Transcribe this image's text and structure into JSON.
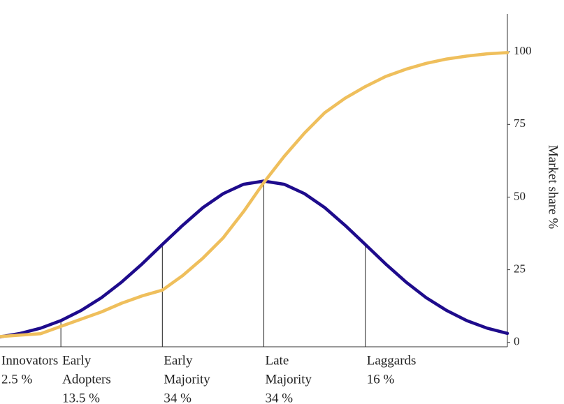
{
  "chart_data": {
    "type": "line",
    "y_axis_label": "Market share %",
    "xlim": [
      -2.6,
      2.4
    ],
    "ylim": [
      -1.5,
      113
    ],
    "yticks": [
      0,
      25,
      50,
      75,
      100
    ],
    "x": [
      -2.6,
      -2.4,
      -2.2,
      -2.0,
      -1.8,
      -1.6,
      -1.4,
      -1.2,
      -1.0,
      -0.8,
      -0.6,
      -0.4,
      -0.2,
      0,
      0.2,
      0.4,
      0.6,
      0.8,
      1.0,
      1.2,
      1.4,
      1.6,
      1.8,
      2.0,
      2.2,
      2.4
    ],
    "series": [
      {
        "color": "#1e0b8c",
        "values": [
          1.9,
          3.1,
          4.9,
          7.5,
          11.0,
          15.4,
          20.8,
          27.0,
          33.7,
          40.3,
          46.4,
          51.2,
          54.4,
          55.5,
          54.4,
          51.2,
          46.4,
          40.3,
          33.7,
          27.0,
          20.8,
          15.4,
          11.0,
          7.5,
          4.9,
          3.1
        ]
      },
      {
        "color": "#efbf5c",
        "values": [
          2,
          2.5,
          3,
          5.5,
          8,
          10.5,
          13.5,
          16,
          18,
          23,
          29,
          36,
          45,
          55,
          64,
          72,
          79,
          84,
          88,
          91.5,
          94,
          96,
          97.5,
          98.5,
          99.3,
          99.7
        ]
      }
    ],
    "dividers": [
      -2,
      -1,
      0,
      1
    ],
    "segments": [
      {
        "start": -2.6,
        "name_lines": [
          "Innovators"
        ],
        "share": {
          "value": 2.5,
          "label": "2.5 %"
        }
      },
      {
        "start": -2,
        "name_lines": [
          "Early",
          "Adopters"
        ],
        "share": {
          "value": 13.5,
          "label": "13.5 %"
        }
      },
      {
        "start": -1,
        "name_lines": [
          "Early",
          "Majority"
        ],
        "share": {
          "value": 34,
          "label": "34 %"
        }
      },
      {
        "start": 0,
        "name_lines": [
          "Late",
          "Majority"
        ],
        "share": {
          "value": 34,
          "label": "34 %"
        }
      },
      {
        "start": 1,
        "name_lines": [
          "Laggards"
        ],
        "share": {
          "value": 16,
          "label": "16 %"
        }
      }
    ]
  }
}
